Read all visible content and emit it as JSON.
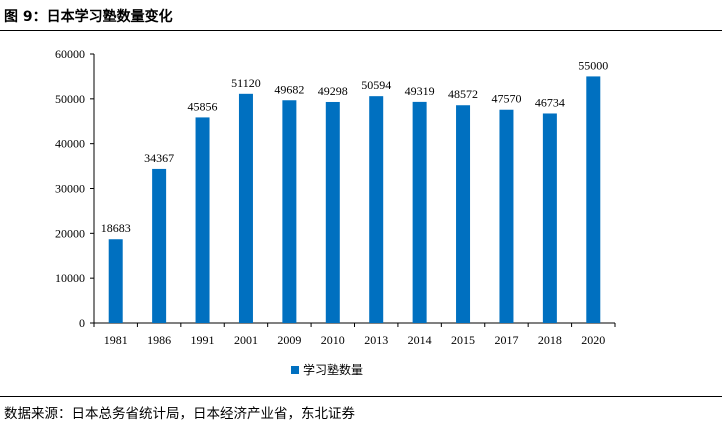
{
  "figure": {
    "title": "图 9：日本学习塾数量变化",
    "source": "数据来源：日本总务省统计局，日本经济产业省，东北证券"
  },
  "chart_data": {
    "type": "bar",
    "title": "日本学习塾数量变化",
    "categories": [
      "1981",
      "1986",
      "1991",
      "2001",
      "2009",
      "2010",
      "2013",
      "2014",
      "2015",
      "2017",
      "2018",
      "2020"
    ],
    "series": [
      {
        "name": "学习塾数量",
        "values": [
          18683,
          34367,
          45856,
          51120,
          49682,
          49298,
          50594,
          49319,
          48572,
          47570,
          46734,
          55000
        ]
      }
    ],
    "ylim": [
      0,
      60000
    ],
    "yticks": [
      0,
      10000,
      20000,
      30000,
      40000,
      50000,
      60000
    ],
    "xlabel": "",
    "ylabel": "",
    "grid": false,
    "legend": "bottom-center",
    "bar_color": "#0070C0"
  }
}
